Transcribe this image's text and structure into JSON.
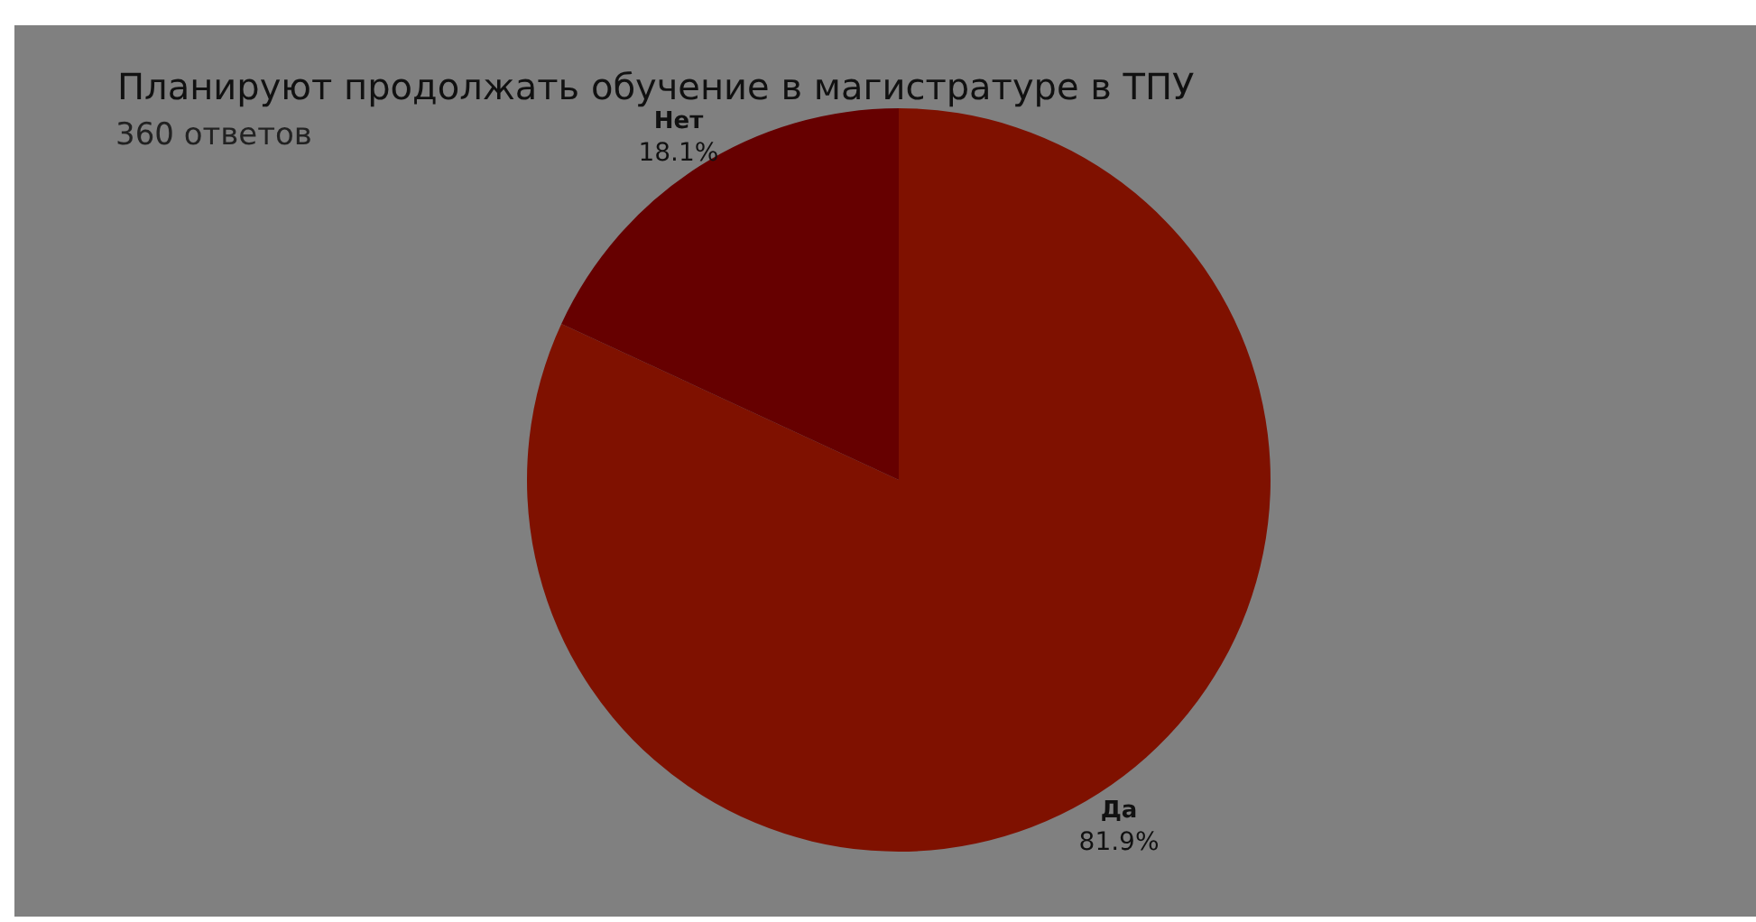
{
  "chart_data": {
    "type": "pie",
    "title": "Планируют продолжать обучение в магистратуре в ТПУ",
    "subtitle": "360 ответов",
    "categories": [
      "Да",
      "Нет"
    ],
    "values": [
      81.9,
      18.1
    ],
    "colors": [
      "#7f1100",
      "#660000"
    ],
    "value_labels": [
      "81.9%",
      "18.1%"
    ],
    "legend": false
  }
}
